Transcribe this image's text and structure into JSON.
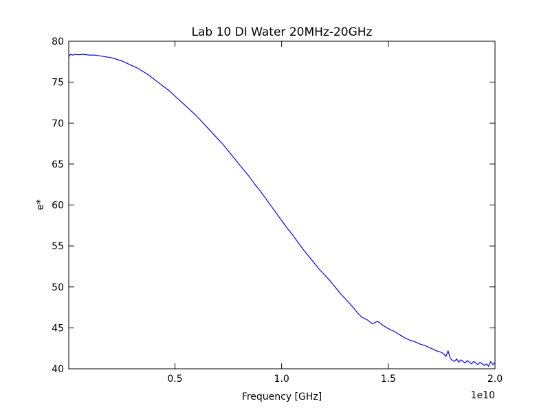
{
  "chart_data": {
    "type": "line",
    "title": "Lab 10 DI Water 20MHz-20GHz",
    "xlabel": "Frequency [GHz]",
    "ylabel": "e*",
    "x_offset_label": "1e10",
    "xlim": [
      20000000,
      20000000000
    ],
    "ylim": [
      40,
      80
    ],
    "xticks": [
      {
        "value": 5000000000,
        "label": "0.5"
      },
      {
        "value": 10000000000,
        "label": "1.0"
      },
      {
        "value": 15000000000,
        "label": "1.5"
      },
      {
        "value": 20000000000,
        "label": "2.0"
      }
    ],
    "yticks": [
      {
        "value": 40,
        "label": "40"
      },
      {
        "value": 45,
        "label": "45"
      },
      {
        "value": 50,
        "label": "50"
      },
      {
        "value": 55,
        "label": "55"
      },
      {
        "value": 60,
        "label": "60"
      },
      {
        "value": 65,
        "label": "65"
      },
      {
        "value": 70,
        "label": "70"
      },
      {
        "value": 75,
        "label": "75"
      },
      {
        "value": 80,
        "label": "80"
      }
    ],
    "grid": false,
    "line_color": "#0000ff",
    "series": [
      {
        "x": [
          20000000,
          100000000,
          200000000,
          300000000,
          500000000,
          700000000,
          1000000000,
          1250000000,
          1500000000,
          1750000000,
          2000000000,
          2250000000,
          2500000000,
          2750000000,
          3000000000,
          3250000000,
          3500000000,
          3750000000,
          4000000000,
          4250000000,
          4500000000,
          4750000000,
          5000000000,
          5250000000,
          5500000000,
          5750000000,
          6000000000,
          6250000000,
          6500000000,
          6750000000,
          7000000000,
          7250000000,
          7500000000,
          7750000000,
          8000000000,
          8250000000,
          8500000000,
          8750000000,
          9000000000,
          9250000000,
          9500000000,
          9750000000,
          10000000000,
          10250000000,
          10500000000,
          10750000000,
          11000000000,
          11250000000,
          11500000000,
          11750000000,
          12000000000,
          12250000000,
          12500000000,
          12750000000,
          13000000000,
          13250000000,
          13500000000,
          13750000000,
          14000000000,
          14250000000,
          14500000000,
          14750000000,
          15000000000,
          15250000000,
          15500000000,
          15750000000,
          16000000000,
          16250000000,
          16500000000,
          16750000000,
          17000000000,
          17250000000,
          17500000000,
          17600000000,
          17700000000,
          17800000000,
          17900000000,
          18000000000,
          18100000000,
          18200000000,
          18300000000,
          18400000000,
          18500000000,
          18600000000,
          18700000000,
          18800000000,
          18900000000,
          19000000000,
          19100000000,
          19200000000,
          19300000000,
          19400000000,
          19500000000,
          19600000000,
          19700000000,
          19800000000,
          19900000000,
          20000000000
        ],
        "values": [
          78.1,
          78.4,
          78.3,
          78.4,
          78.35,
          78.4,
          78.3,
          78.3,
          78.2,
          78.1,
          78.0,
          77.8,
          77.6,
          77.3,
          77.0,
          76.7,
          76.3,
          75.9,
          75.4,
          74.9,
          74.4,
          73.9,
          73.3,
          72.7,
          72.1,
          71.5,
          70.9,
          70.2,
          69.5,
          68.8,
          68.1,
          67.4,
          66.6,
          65.8,
          65.0,
          64.2,
          63.4,
          62.5,
          61.7,
          60.8,
          59.9,
          59.0,
          58.1,
          57.2,
          56.4,
          55.5,
          54.6,
          53.8,
          53.0,
          52.2,
          51.5,
          50.8,
          50.0,
          49.2,
          48.5,
          47.8,
          47.0,
          46.3,
          46.0,
          45.5,
          45.8,
          45.3,
          44.9,
          44.6,
          44.2,
          43.8,
          43.5,
          43.3,
          43.0,
          42.8,
          42.5,
          42.2,
          42.0,
          41.8,
          41.5,
          42.2,
          41.3,
          41.0,
          40.9,
          41.2,
          40.8,
          41.1,
          40.9,
          40.7,
          41.0,
          40.8,
          40.6,
          40.9,
          40.7,
          40.5,
          40.8,
          40.6,
          40.4,
          40.6,
          40.3,
          40.9,
          40.5,
          40.8
        ],
        "_comment_values_note": ""
      }
    ]
  }
}
